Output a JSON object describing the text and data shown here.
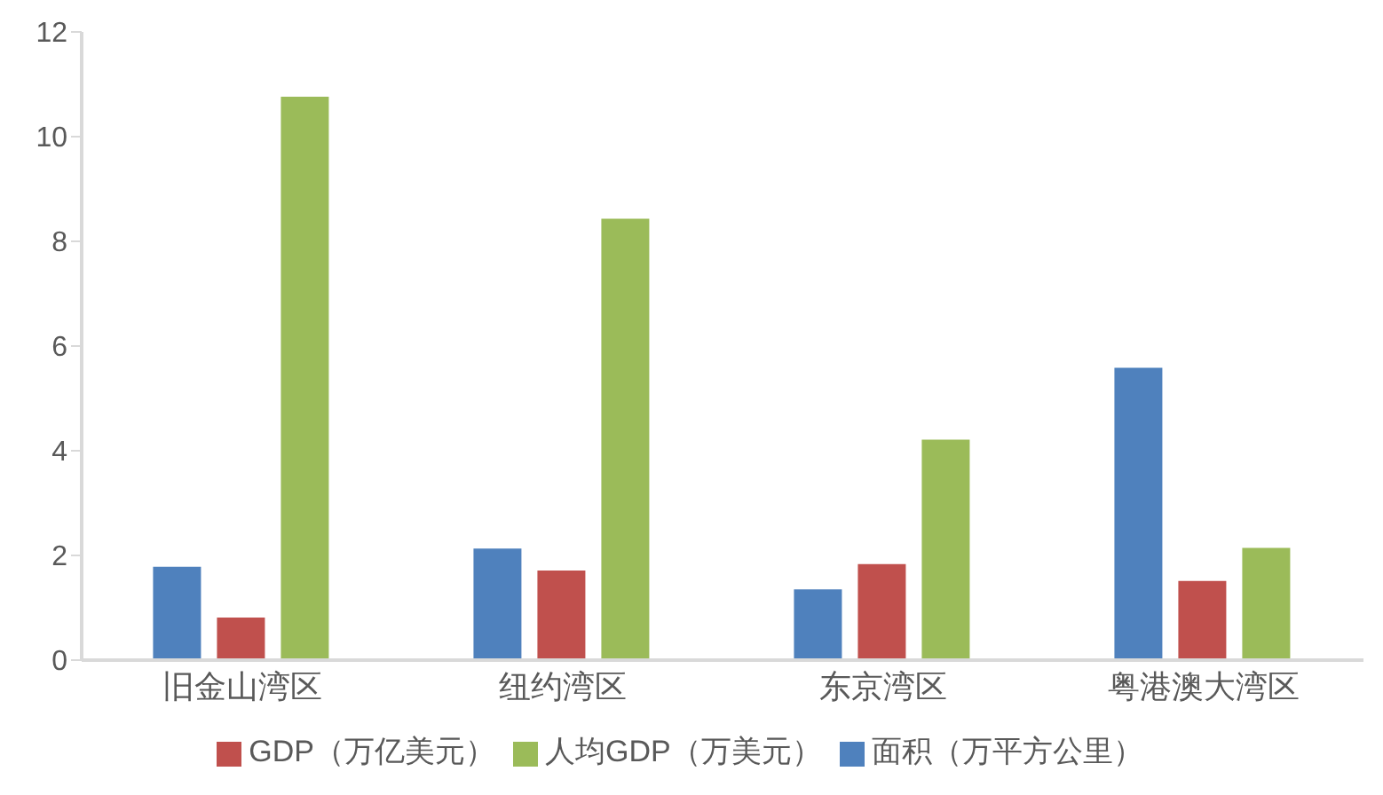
{
  "chart_data": {
    "type": "bar",
    "categories": [
      "旧金山湾区",
      "纽约湾区",
      "东京湾区",
      "粤港澳大湾区"
    ],
    "series": [
      {
        "name": "面积（万平方公里）",
        "color": "#4f81bd",
        "values": [
          1.8,
          2.15,
          1.37,
          5.6
        ]
      },
      {
        "name": "GDP（万亿美元）",
        "color": "#c0504d",
        "values": [
          0.83,
          1.73,
          1.85,
          1.53
        ]
      },
      {
        "name": "人均GDP（万美元）",
        "color": "#9bbb59",
        "values": [
          10.78,
          8.45,
          4.23,
          2.16
        ]
      }
    ],
    "ylim": [
      0,
      12
    ],
    "yticks": [
      0,
      2,
      4,
      6,
      8,
      10,
      12
    ],
    "grid": false,
    "legend": "bottom"
  }
}
